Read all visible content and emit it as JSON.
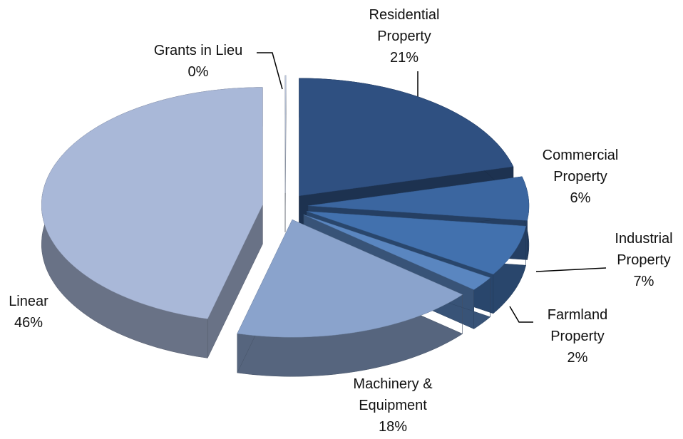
{
  "chart_data": {
    "type": "pie",
    "categories": [
      "Residential Property",
      "Commercial Property",
      "Industrial Property",
      "Farmland Property",
      "Machinery & Equipment",
      "Linear",
      "Grants in Lieu"
    ],
    "values": [
      21,
      6,
      7,
      2,
      18,
      46,
      0
    ],
    "value_labels": [
      "21%",
      "6%",
      "7%",
      "2%",
      "18%",
      "46%",
      "0%"
    ],
    "colors": [
      "#2f5081",
      "#3b66a0",
      "#4271ae",
      "#5a86c0",
      "#8aa3cc",
      "#a9b8d8",
      "#c5d0e6"
    ]
  }
}
